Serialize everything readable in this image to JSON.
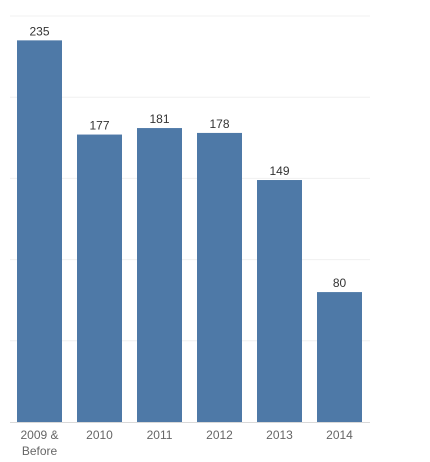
{
  "chart_data": {
    "type": "bar",
    "categories": [
      [
        "2009 &",
        "Before"
      ],
      [
        "2010"
      ],
      [
        "2011"
      ],
      [
        "2012"
      ],
      [
        "2013"
      ],
      [
        "2014"
      ]
    ],
    "values": [
      235,
      177,
      181,
      178,
      149,
      80
    ],
    "data_labels": [
      "235",
      "177",
      "181",
      "178",
      "149",
      "80"
    ],
    "ylim": [
      0,
      250
    ],
    "grid": true,
    "bar_color": "#4e79a7",
    "grid_color": "#f0f0f0",
    "axis_color": "#d9d9d9"
  }
}
